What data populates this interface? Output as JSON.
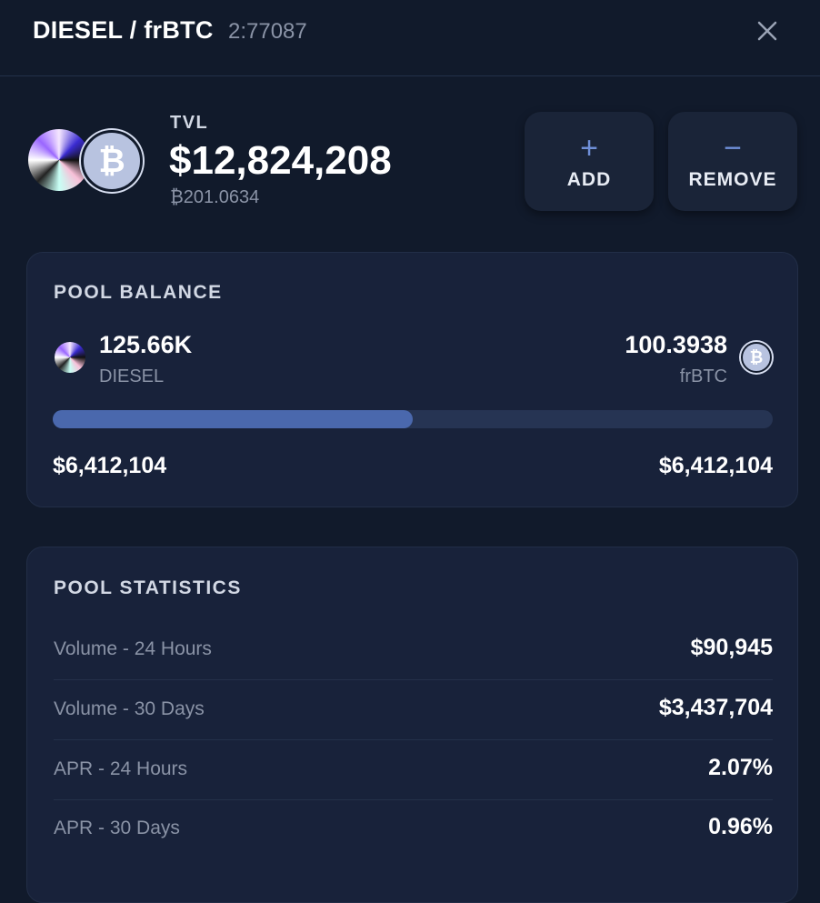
{
  "header": {
    "title": "DIESEL / frBTC",
    "pool_id": "2:77087"
  },
  "tvl": {
    "label": "TVL",
    "usd": "$12,824,208",
    "btc": "₿201.0634"
  },
  "actions": [
    {
      "label": "ADD"
    },
    {
      "label": "REMOVE"
    }
  ],
  "pool_balance": {
    "title": "POOL BALANCE",
    "tokens": [
      {
        "amount": "125.66K",
        "symbol": "DIESEL",
        "usd": "$6,412,104"
      },
      {
        "amount": "100.3938",
        "symbol": "frBTC",
        "usd": "$6,412,104"
      }
    ]
  },
  "pool_statistics": {
    "title": "POOL STATISTICS",
    "rows": [
      {
        "label": "Volume - 24 Hours",
        "value": "$90,945"
      },
      {
        "label": "Volume - 30 Days",
        "value": "$3,437,704"
      },
      {
        "label": "APR - 24 Hours",
        "value": "2.07%"
      },
      {
        "label": "APR - 30 Days",
        "value": "0.96%"
      }
    ]
  }
}
